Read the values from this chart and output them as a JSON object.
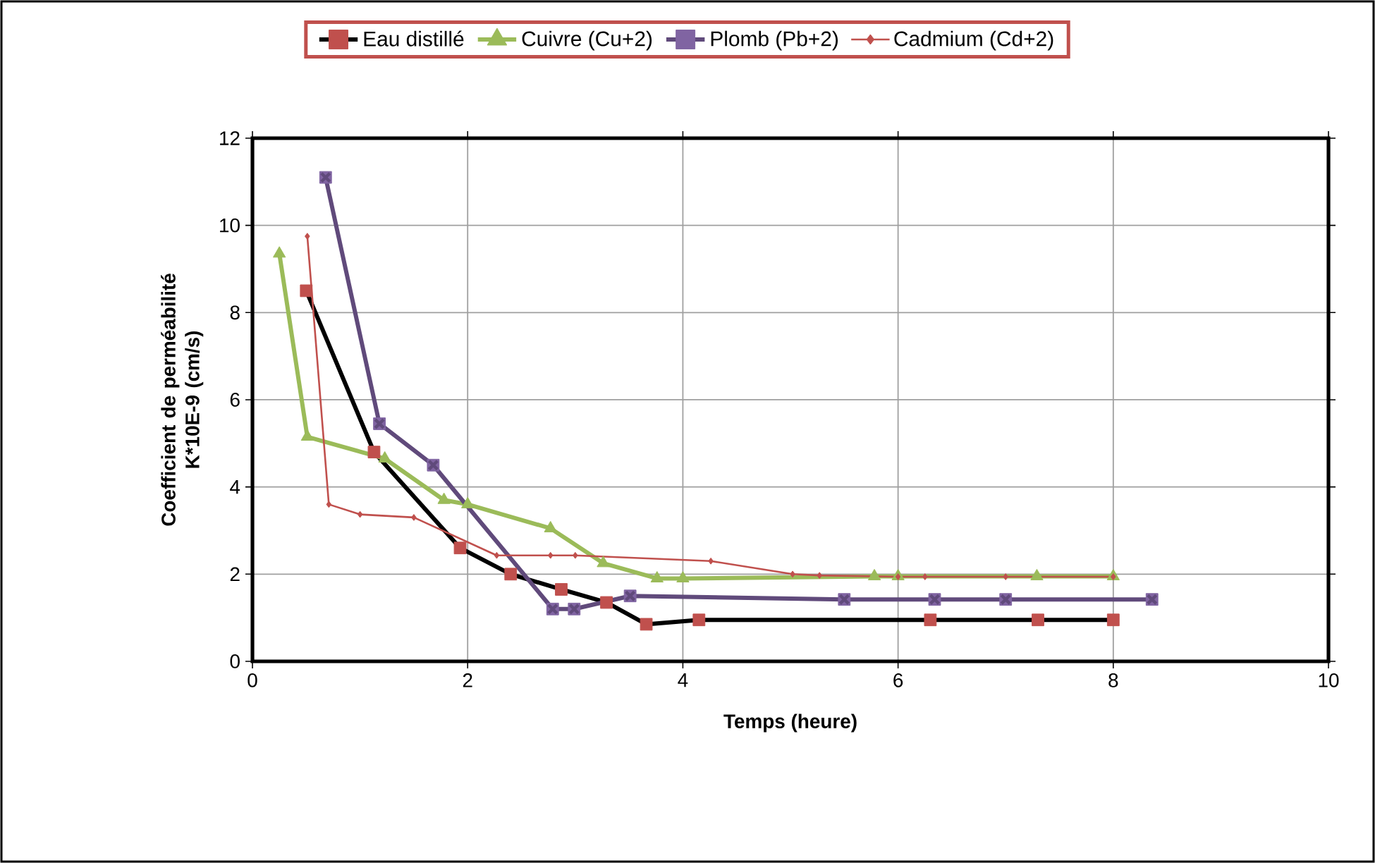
{
  "chart_data": {
    "type": "line",
    "xlabel": "Temps (heure)",
    "ylabel": "Coefficient de perméabilité K*10E-9 (cm/s)",
    "xlim": [
      0,
      10
    ],
    "xticks": [
      0,
      2,
      4,
      6,
      8,
      10
    ],
    "ylim": [
      0,
      12
    ],
    "yticks": [
      0,
      2,
      4,
      6,
      8,
      10,
      12
    ],
    "grid": true,
    "legend": "top",
    "series": [
      {
        "name": "Eau distillé",
        "color": "#000000",
        "marker": "square",
        "x": [
          0.5,
          1.13,
          1.93,
          2.4,
          2.87,
          3.29,
          3.66,
          4.15,
          6.3,
          7.3,
          8.0
        ],
        "values": [
          8.5,
          4.8,
          2.6,
          2.0,
          1.65,
          1.35,
          0.85,
          0.95,
          0.95,
          0.95,
          0.95
        ]
      },
      {
        "name": "Cuivre (Cu+2)",
        "color": "#9bbb59",
        "marker": "triangle",
        "x": [
          0.25,
          0.51,
          1.23,
          1.78,
          2.0,
          2.77,
          3.26,
          3.76,
          4.0,
          5.78,
          6.0,
          7.29,
          8.0
        ],
        "values": [
          9.35,
          5.15,
          4.65,
          3.7,
          3.6,
          3.05,
          2.25,
          1.9,
          1.9,
          1.95,
          1.95,
          1.95,
          1.95
        ]
      },
      {
        "name": "Plomb (Pb+2)",
        "color": "#604a7b",
        "marker": "cross",
        "x": [
          0.68,
          1.18,
          1.68,
          2.79,
          2.99,
          3.51,
          5.5,
          6.34,
          7.0,
          8.36
        ],
        "values": [
          11.1,
          5.45,
          4.5,
          1.2,
          1.2,
          1.5,
          1.42,
          1.42,
          1.42,
          1.42
        ]
      },
      {
        "name": "Cadmium (Cd+2)",
        "color": "#c0504d",
        "marker": "diamond",
        "x": [
          0.51,
          0.71,
          1.0,
          1.5,
          2.27,
          2.77,
          3.0,
          4.26,
          5.02,
          5.27,
          6.0,
          6.25,
          7.0,
          8.0
        ],
        "values": [
          9.75,
          3.6,
          3.37,
          3.3,
          2.43,
          2.43,
          2.43,
          2.3,
          2.0,
          1.97,
          1.94,
          1.94,
          1.94,
          1.94
        ]
      }
    ]
  }
}
